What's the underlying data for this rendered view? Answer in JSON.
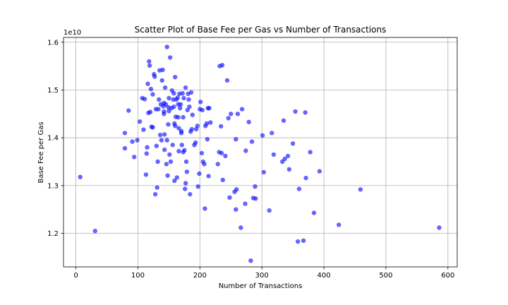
{
  "chart_data": {
    "type": "scatter",
    "title": "Scatter Plot of Base Fee per Gas vs Number of Transactions",
    "xlabel": "Number of Transactions",
    "ylabel": "Base Fee per Gas",
    "y_offset_label": "1e10",
    "xlim": [
      -20,
      615
    ],
    "ylim": [
      1.13,
      1.61
    ],
    "xticks": [
      0,
      100,
      200,
      300,
      400,
      500,
      600
    ],
    "xtick_labels": [
      "0",
      "100",
      "200",
      "300",
      "400",
      "500",
      "600"
    ],
    "yticks": [
      1.2,
      1.3,
      1.4,
      1.5,
      1.6
    ],
    "ytick_labels": [
      "1.2",
      "1.3",
      "1.4",
      "1.5",
      "1.6"
    ],
    "grid": true,
    "marker_color": "#0000ff",
    "marker_alpha": 0.6,
    "points": [
      [
        7,
        1.318
      ],
      [
        31,
        1.205
      ],
      [
        79,
        1.41
      ],
      [
        79,
        1.378
      ],
      [
        85,
        1.457
      ],
      [
        91,
        1.392
      ],
      [
        94,
        1.36
      ],
      [
        99,
        1.395
      ],
      [
        103,
        1.434
      ],
      [
        107,
        1.483
      ],
      [
        109,
        1.417
      ],
      [
        111,
        1.481
      ],
      [
        113,
        1.323
      ],
      [
        114,
        1.367
      ],
      [
        115,
        1.38
      ],
      [
        116,
        1.513
      ],
      [
        117,
        1.452
      ],
      [
        118,
        1.56
      ],
      [
        119,
        1.551
      ],
      [
        120,
        1.454
      ],
      [
        121,
        1.502
      ],
      [
        122,
        1.423
      ],
      [
        124,
        1.491
      ],
      [
        124,
        1.422
      ],
      [
        126,
        1.533
      ],
      [
        127,
        1.528
      ],
      [
        128,
        1.282
      ],
      [
        129,
        1.46
      ],
      [
        130,
        1.383
      ],
      [
        131,
        1.296
      ],
      [
        132,
        1.35
      ],
      [
        133,
        1.46
      ],
      [
        134,
        1.48
      ],
      [
        135,
        1.541
      ],
      [
        136,
        1.406
      ],
      [
        137,
        1.47
      ],
      [
        138,
        1.395
      ],
      [
        139,
        1.52
      ],
      [
        140,
        1.542
      ],
      [
        141,
        1.466
      ],
      [
        142,
        1.473
      ],
      [
        142,
        1.455
      ],
      [
        142,
        1.45
      ],
      [
        143,
        1.407
      ],
      [
        143,
        1.375
      ],
      [
        144,
        1.505
      ],
      [
        145,
        1.47
      ],
      [
        146,
        1.345
      ],
      [
        147,
        1.59
      ],
      [
        147,
        1.395
      ],
      [
        148,
        1.321
      ],
      [
        149,
        1.464
      ],
      [
        149,
        1.428
      ],
      [
        150,
        1.483
      ],
      [
        150,
        1.456
      ],
      [
        151,
        1.365
      ],
      [
        152,
        1.568
      ],
      [
        153,
        1.35
      ],
      [
        154,
        1.462
      ],
      [
        155,
        1.499
      ],
      [
        156,
        1.385
      ],
      [
        157,
        1.48
      ],
      [
        158,
        1.493
      ],
      [
        158,
        1.465
      ],
      [
        159,
        1.43
      ],
      [
        159,
        1.31
      ],
      [
        160,
        1.527
      ],
      [
        160,
        1.425
      ],
      [
        161,
        1.444
      ],
      [
        162,
        1.48
      ],
      [
        163,
        1.317
      ],
      [
        164,
        1.484
      ],
      [
        165,
        1.47
      ],
      [
        165,
        1.443
      ],
      [
        166,
        1.42
      ],
      [
        166,
        1.372
      ],
      [
        167,
        1.492
      ],
      [
        168,
        1.462
      ],
      [
        169,
        1.47
      ],
      [
        170,
        1.414
      ],
      [
        170,
        1.41
      ],
      [
        171,
        1.385
      ],
      [
        172,
        1.493
      ],
      [
        173,
        1.443
      ],
      [
        173,
        1.37
      ],
      [
        174,
        1.483
      ],
      [
        175,
        1.374
      ],
      [
        176,
        1.293
      ],
      [
        177,
        1.505
      ],
      [
        177,
        1.305
      ],
      [
        178,
        1.35
      ],
      [
        179,
        1.329
      ],
      [
        180,
        1.458
      ],
      [
        181,
        1.492
      ],
      [
        182,
        1.48
      ],
      [
        183,
        1.465
      ],
      [
        184,
        1.282
      ],
      [
        185,
        1.413
      ],
      [
        186,
        1.495
      ],
      [
        187,
        1.418
      ],
      [
        188,
        1.448
      ],
      [
        191,
        1.385
      ],
      [
        193,
        1.39
      ],
      [
        194,
        1.418
      ],
      [
        196,
        1.425
      ],
      [
        197,
        1.298
      ],
      [
        199,
        1.325
      ],
      [
        200,
        1.46
      ],
      [
        201,
        1.475
      ],
      [
        203,
        1.368
      ],
      [
        204,
        1.458
      ],
      [
        205,
        1.35
      ],
      [
        207,
        1.345
      ],
      [
        208,
        1.252
      ],
      [
        209,
        1.425
      ],
      [
        211,
        1.43
      ],
      [
        212,
        1.397
      ],
      [
        213,
        1.462
      ],
      [
        214,
        1.32
      ],
      [
        215,
        1.462
      ],
      [
        217,
        1.432
      ],
      [
        229,
        1.345
      ],
      [
        231,
        1.37
      ],
      [
        232,
        1.55
      ],
      [
        234,
        1.424
      ],
      [
        235,
        1.368
      ],
      [
        236,
        1.552
      ],
      [
        237,
        1.312
      ],
      [
        241,
        1.362
      ],
      [
        244,
        1.52
      ],
      [
        246,
        1.441
      ],
      [
        248,
        1.275
      ],
      [
        250,
        1.45
      ],
      [
        256,
        1.287
      ],
      [
        258,
        1.25
      ],
      [
        258,
        1.397
      ],
      [
        259,
        1.292
      ],
      [
        261,
        1.45
      ],
      [
        266,
        1.212
      ],
      [
        268,
        1.46
      ],
      [
        273,
        1.262
      ],
      [
        274,
        1.373
      ],
      [
        279,
        1.433
      ],
      [
        282,
        1.143
      ],
      [
        284,
        1.392
      ],
      [
        286,
        1.274
      ],
      [
        289,
        1.298
      ],
      [
        290,
        1.273
      ],
      [
        301,
        1.405
      ],
      [
        303,
        1.328
      ],
      [
        312,
        1.248
      ],
      [
        316,
        1.41
      ],
      [
        319,
        1.365
      ],
      [
        333,
        1.35
      ],
      [
        335,
        1.436
      ],
      [
        337,
        1.356
      ],
      [
        342,
        1.362
      ],
      [
        344,
        1.334
      ],
      [
        350,
        1.388
      ],
      [
        354,
        1.455
      ],
      [
        358,
        1.183
      ],
      [
        360,
        1.293
      ],
      [
        367,
        1.185
      ],
      [
        370,
        1.453
      ],
      [
        371,
        1.316
      ],
      [
        378,
        1.37
      ],
      [
        384,
        1.243
      ],
      [
        393,
        1.33
      ],
      [
        424,
        1.218
      ],
      [
        459,
        1.292
      ],
      [
        586,
        1.212
      ]
    ]
  }
}
